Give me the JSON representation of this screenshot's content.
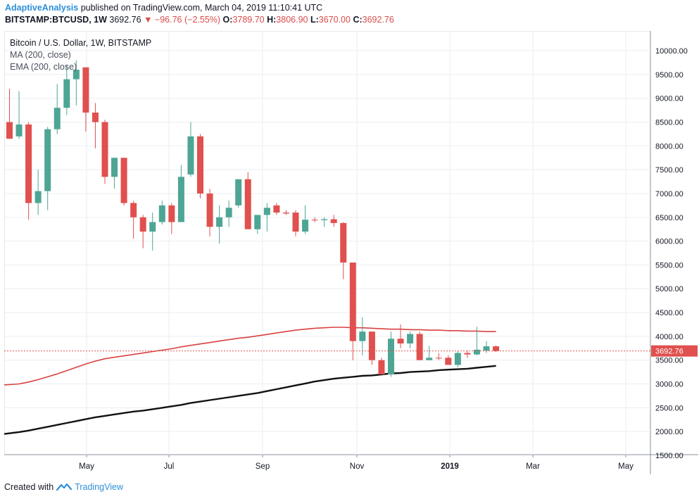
{
  "header": {
    "author": "AdaptiveAnalysis",
    "published_text": "published on TradingView.com, March 04, 2019 11:10:41 UTC",
    "symbol": "BITSTAMP:BTCUSD, 1W",
    "last": "3692.76",
    "change": "−96.76 (−2.55%)",
    "o_label": "O:",
    "o_value": "3789.70",
    "h_label": "H:",
    "h_value": "3806.90",
    "l_label": "L:",
    "l_value": "3670.00",
    "c_label": "C:",
    "c_value": "3692.76"
  },
  "legend": {
    "title": "Bitcoin / U.S. Dollar, 1W, BITSTAMP",
    "ma": "MA (200, close)",
    "ema": "EMA (200, close)"
  },
  "footer": {
    "created_with": "Created with",
    "brand": "TradingView"
  },
  "colors": {
    "up": "#4ea594",
    "down": "#e0504e",
    "ma_line": "#d94140",
    "ema_line": "#111111",
    "grid": "#e9edf2",
    "price_line": "#e0504e"
  },
  "chart_data": {
    "type": "candlestick",
    "timeframe": "1W",
    "y_axis": {
      "min": 1500,
      "max": 10000,
      "ticks": [
        "10000.00",
        "9500.00",
        "9000.00",
        "8500.00",
        "8000.00",
        "7500.00",
        "7000.00",
        "6500.00",
        "6000.00",
        "5500.00",
        "5000.00",
        "4500.00",
        "4000.00",
        "3500.00",
        "3000.00",
        "2500.00",
        "2000.00",
        "1500.00"
      ],
      "position": "right"
    },
    "x_axis": {
      "labels": [
        "May",
        "Jul",
        "Sep",
        "Nov",
        "2019",
        "Mar",
        "May"
      ]
    },
    "last_price": 3692.76,
    "last_price_label": "3692.76",
    "candles": [
      {
        "o": 8500,
        "h": 9200,
        "l": 8150,
        "c": 8150
      },
      {
        "o": 8200,
        "h": 9150,
        "l": 8150,
        "c": 8450
      },
      {
        "o": 8450,
        "h": 8500,
        "l": 6450,
        "c": 6800
      },
      {
        "o": 6800,
        "h": 7500,
        "l": 6550,
        "c": 7050
      },
      {
        "o": 7050,
        "h": 8400,
        "l": 6650,
        "c": 8350
      },
      {
        "o": 8350,
        "h": 9300,
        "l": 8250,
        "c": 8800
      },
      {
        "o": 8800,
        "h": 9700,
        "l": 8650,
        "c": 9400
      },
      {
        "o": 9400,
        "h": 9800,
        "l": 8850,
        "c": 9600
      },
      {
        "o": 9650,
        "h": 9650,
        "l": 8300,
        "c": 8700
      },
      {
        "o": 8700,
        "h": 8900,
        "l": 7950,
        "c": 8500
      },
      {
        "o": 8500,
        "h": 8550,
        "l": 7200,
        "c": 7350
      },
      {
        "o": 7350,
        "h": 7750,
        "l": 7100,
        "c": 7750
      },
      {
        "o": 7750,
        "h": 7750,
        "l": 6750,
        "c": 6800
      },
      {
        "o": 6800,
        "h": 6850,
        "l": 6050,
        "c": 6500
      },
      {
        "o": 6500,
        "h": 6550,
        "l": 5850,
        "c": 6200
      },
      {
        "o": 6200,
        "h": 6600,
        "l": 5800,
        "c": 6400
      },
      {
        "o": 6400,
        "h": 6850,
        "l": 6350,
        "c": 6750
      },
      {
        "o": 6750,
        "h": 6800,
        "l": 6150,
        "c": 6400
      },
      {
        "o": 6400,
        "h": 7600,
        "l": 6400,
        "c": 7350
      },
      {
        "o": 7400,
        "h": 8500,
        "l": 7350,
        "c": 8200
      },
      {
        "o": 8200,
        "h": 8250,
        "l": 6900,
        "c": 7000
      },
      {
        "o": 7000,
        "h": 7100,
        "l": 6100,
        "c": 6300
      },
      {
        "o": 6300,
        "h": 6750,
        "l": 5950,
        "c": 6500
      },
      {
        "o": 6500,
        "h": 6850,
        "l": 6300,
        "c": 6700
      },
      {
        "o": 6750,
        "h": 7300,
        "l": 6700,
        "c": 7300
      },
      {
        "o": 7300,
        "h": 7450,
        "l": 6300,
        "c": 6250
      },
      {
        "o": 6250,
        "h": 6550,
        "l": 6150,
        "c": 6550
      },
      {
        "o": 6550,
        "h": 6800,
        "l": 6200,
        "c": 6700
      },
      {
        "o": 6750,
        "h": 6800,
        "l": 6550,
        "c": 6600
      },
      {
        "o": 6600,
        "h": 6650,
        "l": 6550,
        "c": 6580
      },
      {
        "o": 6600,
        "h": 6650,
        "l": 6100,
        "c": 6200
      },
      {
        "o": 6200,
        "h": 6750,
        "l": 6150,
        "c": 6450
      },
      {
        "o": 6450,
        "h": 6500,
        "l": 6400,
        "c": 6440
      },
      {
        "o": 6440,
        "h": 6500,
        "l": 6300,
        "c": 6460
      },
      {
        "o": 6460,
        "h": 6550,
        "l": 6300,
        "c": 6380
      },
      {
        "o": 6380,
        "h": 6400,
        "l": 5200,
        "c": 5550
      },
      {
        "o": 5550,
        "h": 5550,
        "l": 3500,
        "c": 3900
      },
      {
        "o": 3900,
        "h": 4400,
        "l": 3600,
        "c": 4100
      },
      {
        "o": 4100,
        "h": 4100,
        "l": 3400,
        "c": 3500
      },
      {
        "o": 3500,
        "h": 3550,
        "l": 3200,
        "c": 3200
      },
      {
        "o": 3200,
        "h": 4100,
        "l": 3150,
        "c": 3950
      },
      {
        "o": 3950,
        "h": 4250,
        "l": 3750,
        "c": 3850
      },
      {
        "o": 3850,
        "h": 4100,
        "l": 3750,
        "c": 4050
      },
      {
        "o": 4050,
        "h": 4100,
        "l": 3500,
        "c": 3500
      },
      {
        "o": 3500,
        "h": 3800,
        "l": 3500,
        "c": 3550
      },
      {
        "o": 3550,
        "h": 3650,
        "l": 3500,
        "c": 3540
      },
      {
        "o": 3550,
        "h": 3600,
        "l": 3400,
        "c": 3400
      },
      {
        "o": 3400,
        "h": 3700,
        "l": 3350,
        "c": 3650
      },
      {
        "o": 3650,
        "h": 3700,
        "l": 3550,
        "c": 3620
      },
      {
        "o": 3620,
        "h": 4200,
        "l": 3600,
        "c": 3720
      },
      {
        "o": 3700,
        "h": 3900,
        "l": 3650,
        "c": 3790
      },
      {
        "o": 3790,
        "h": 3807,
        "l": 3670,
        "c": 3693
      }
    ],
    "series": [
      {
        "name": "MA (200, close)",
        "values": [
          2980,
          3000,
          3040,
          3090,
          3150,
          3210,
          3280,
          3350,
          3420,
          3480,
          3530,
          3560,
          3590,
          3620,
          3650,
          3680,
          3710,
          3740,
          3780,
          3810,
          3840,
          3870,
          3900,
          3930,
          3960,
          3980,
          4010,
          4040,
          4070,
          4100,
          4130,
          4150,
          4170,
          4180,
          4190,
          4190,
          4180,
          4180,
          4170,
          4160,
          4150,
          4150,
          4140,
          4140,
          4130,
          4130,
          4120,
          4120,
          4110,
          4110,
          4100,
          4100
        ]
      },
      {
        "name": "EMA (200, close)",
        "values": [
          1950,
          1990,
          2020,
          2060,
          2100,
          2140,
          2180,
          2220,
          2260,
          2300,
          2330,
          2360,
          2390,
          2420,
          2440,
          2470,
          2500,
          2530,
          2560,
          2600,
          2630,
          2660,
          2690,
          2720,
          2750,
          2780,
          2810,
          2850,
          2890,
          2930,
          2970,
          3010,
          3050,
          3080,
          3110,
          3130,
          3150,
          3170,
          3180,
          3200,
          3220,
          3230,
          3250,
          3260,
          3270,
          3290,
          3300,
          3310,
          3320,
          3340,
          3360,
          3380
        ]
      }
    ]
  }
}
